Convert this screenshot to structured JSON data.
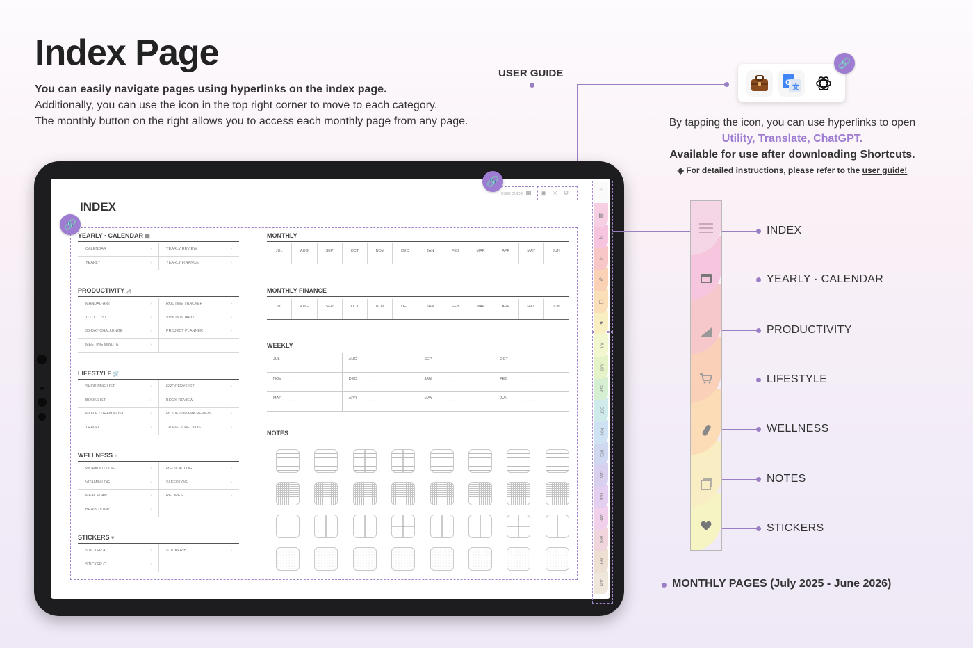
{
  "heading": {
    "title": "Index Page",
    "line1": "You can easily navigate  pages using hyperlinks on the index page.",
    "line2": "Additionally, you can use the icon in the top right corner to move to each category.",
    "line3": "The monthly button on the right allows you to access each monthly page from any page."
  },
  "user_guide_label": "USER GUIDE",
  "shortcut_icons": [
    "briefcase-icon",
    "google-translate-icon",
    "chatgpt-icon"
  ],
  "shortcut_info": {
    "line1": "By tapping the icon, you can use hyperlinks to open",
    "apps": "Utility, Translate, ChatGPT.",
    "availability": "Available for use after downloading Shortcuts.",
    "note_prefix": "◈ For detailed instructions, please refer to the ",
    "note_link": "user guide!"
  },
  "colors": {
    "accent": "#9d7cd1",
    "tab_index": "#f7cfe4",
    "tab_yearly": "#f6c4df",
    "tab_productivity": "#f8c6c6",
    "tab_lifestyle": "#fbd1b6",
    "tab_wellness": "#fbdfb8",
    "tab_notes": "#f9efc3",
    "tab_stickers": "#f7f5c6"
  },
  "planner": {
    "index_title": "INDEX",
    "top_user_guide": "USER GUIDE",
    "yearly": {
      "title": "YEARLY · CALENDAR",
      "rows": [
        [
          "CALENDAR",
          "YEARLY REVIEW"
        ],
        [
          "YEARLY",
          "YEARLY FINANCE"
        ]
      ]
    },
    "productivity": {
      "title": "PRODUCTIVITY",
      "rows": [
        [
          "MANDAL-ART",
          "ROUTINE TRACKER"
        ],
        [
          "TO DO LIST",
          "VISION BOARD"
        ],
        [
          "30-DAY CHALLENGE",
          "PROJECT PLANNER"
        ],
        [
          "MEETING MINUTE",
          ""
        ]
      ]
    },
    "lifestyle": {
      "title": "LIFESTYLE",
      "rows": [
        [
          "SHOPPING LIST",
          "GROCERY LIST"
        ],
        [
          "BOOK LIST",
          "BOOK REVIEW"
        ],
        [
          "MOVIE / DRAMA LIST",
          "MOVIE / DRAMA REVIEW"
        ],
        [
          "TRAVEL",
          "TRAVEL CHECKLIST"
        ]
      ]
    },
    "wellness": {
      "title": "WELLNESS",
      "rows": [
        [
          "WORKOUT LOG",
          "MEDICAL LOG"
        ],
        [
          "VITAMIN LOG",
          "SLEEP LOG"
        ],
        [
          "MEAL PLAN",
          "RECIPES"
        ],
        [
          "BRAIN DUMP",
          ""
        ]
      ]
    },
    "stickers": {
      "title": "STICKERS",
      "rows": [
        [
          "STICKER A",
          "STICKER B"
        ],
        [
          "STICKER C",
          ""
        ]
      ]
    },
    "monthly_title": "MONTHLY",
    "monthly_finance_title": "MONTHLY FINANCE",
    "months": [
      "JUL",
      "AUG",
      "SEP",
      "OCT",
      "NOV",
      "DEC",
      "JAN",
      "FEB",
      "MAR",
      "APR",
      "MAY",
      "JUN"
    ],
    "weekly_title": "WEEKLY",
    "notes_title": "NOTES",
    "side_months": [
      "JUL",
      "AUG",
      "SEP",
      "OCT",
      "NOV",
      "DEC",
      "JAN",
      "FEB",
      "MAR",
      "APR",
      "MAY",
      "JUN"
    ]
  },
  "sidebar_legend": {
    "index": "INDEX",
    "yearly": "YEARLY · CALENDAR",
    "productivity": "PRODUCTIVITY",
    "lifestyle": "LIFESTYLE",
    "wellness": "WELLNESS",
    "notes": "NOTES",
    "stickers": "STICKERS"
  },
  "monthly_pages_label": "MONTHLY PAGES (July 2025 - June 2026)"
}
